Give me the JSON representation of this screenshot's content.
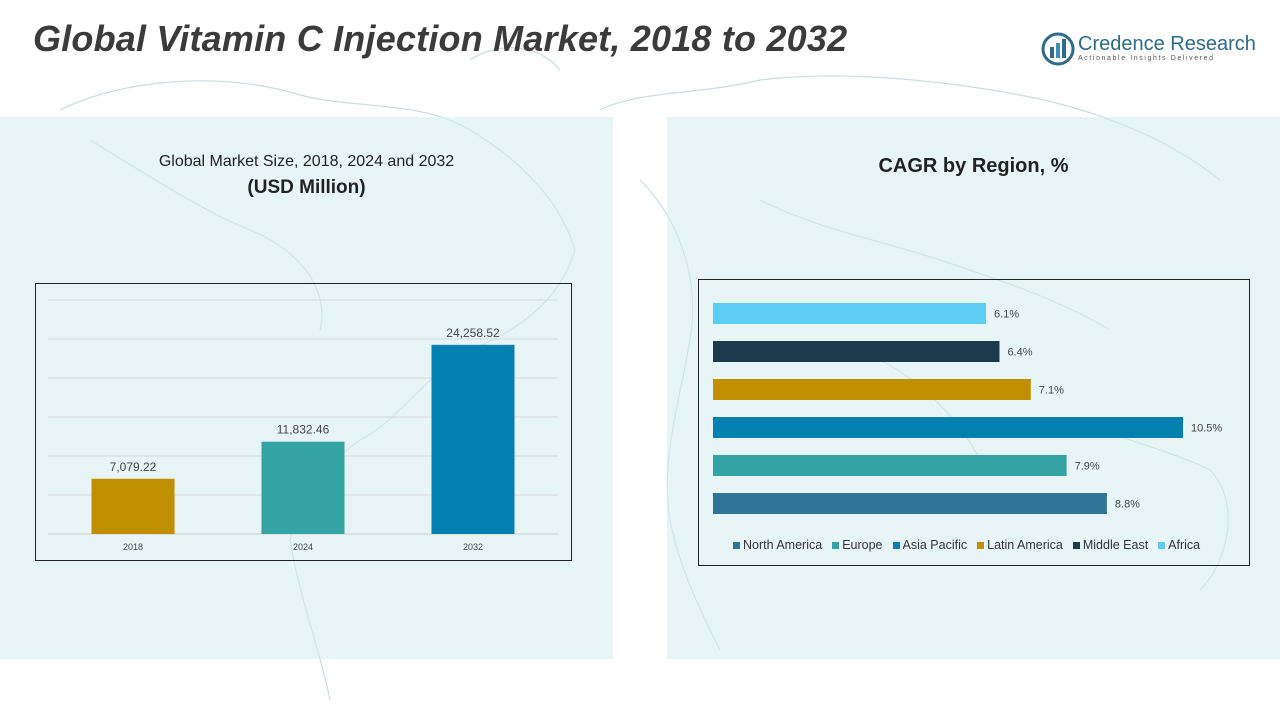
{
  "header": {
    "title": "Global Vitamin C Injection Market, 2018 to 2032",
    "logo_name": "Credence Research",
    "logo_tagline": "Actionable Insights Delivered"
  },
  "left_panel": {
    "subtitle": "Global Market Size, 2018, 2024 and 2032",
    "unit": "(USD Million)"
  },
  "right_panel": {
    "title": "CAGR by Region, %"
  },
  "colors": {
    "brand": "#2e6b8a",
    "bar_2018": "#bf8f00",
    "bar_2024": "#33a3a3",
    "bar_2032": "#0380b0",
    "north_america": "#2e7597",
    "europe": "#33a3a3",
    "asia_pacific": "#0380b0",
    "latin_america": "#bf8f00",
    "middle_east": "#1b3a4b",
    "africa": "#5dcdf5"
  },
  "chart_data": [
    {
      "type": "bar",
      "categories": [
        "2018",
        "2024",
        "2032"
      ],
      "values": [
        7079.22,
        11832.46,
        24258.52
      ],
      "value_labels": [
        "7,079.22",
        "11,832.46",
        "24,258.52"
      ],
      "ylim": [
        0,
        30000
      ],
      "grid": true
    },
    {
      "type": "bar",
      "orientation": "horizontal",
      "series": [
        {
          "name": "North America",
          "value": 8.8,
          "label": "8.8%",
          "color": "#2e7597"
        },
        {
          "name": "Europe",
          "value": 7.9,
          "label": "7.9%",
          "color": "#33a3a3"
        },
        {
          "name": "Asia Pacific",
          "value": 10.5,
          "label": "10.5%",
          "color": "#0380b0"
        },
        {
          "name": "Latin America",
          "value": 7.1,
          "label": "7.1%",
          "color": "#bf8f00"
        },
        {
          "name": "Middle East",
          "value": 6.4,
          "label": "6.4%",
          "color": "#1b3a4b"
        },
        {
          "name": "Africa",
          "value": 6.1,
          "label": "6.1%",
          "color": "#5dcdf5"
        }
      ],
      "xlim": [
        0,
        10.5
      ],
      "legend": "bottom"
    }
  ]
}
